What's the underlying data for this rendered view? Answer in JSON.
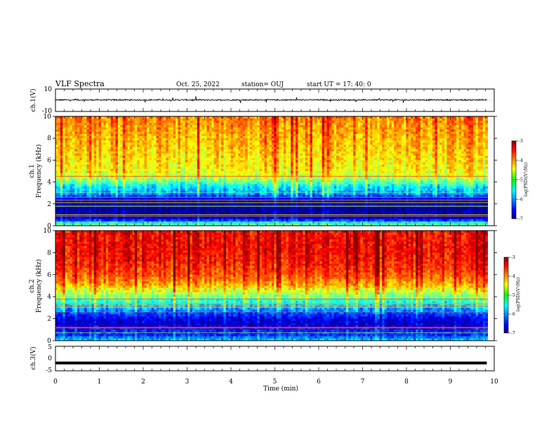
{
  "header": {
    "title": "VLF Spectra",
    "date": "Oct. 25, 2022",
    "station": "station= OUJ",
    "start": "start  UT =   17: 40: 0"
  },
  "chart_data": [
    {
      "type": "line",
      "panel": "ch1-waveform",
      "ylabel": "ch.1(V)",
      "ylim": [
        -10,
        10
      ],
      "y_ticks": [
        "10",
        "-10"
      ],
      "description_level": 0.3,
      "x_range_min": [
        0,
        10
      ],
      "series": [
        {
          "values_approx_mean": 0.3,
          "noise_amplitude": 1.2
        }
      ]
    },
    {
      "type": "heatmap",
      "panel": "ch1-spectrogram",
      "ylabel": "ch.1",
      "ylabel2": "Frequency (kHz)",
      "ylim": [
        0,
        10
      ],
      "y_ticks": [
        "0",
        "2",
        "4",
        "6",
        "8",
        "10"
      ],
      "x_range_min": [
        0,
        10
      ],
      "data_end_min": 9.85,
      "colorbar": {
        "label": "log(PSD)(V²/Hz)",
        "range": [
          -7,
          -3
        ],
        "ticks": [
          "-3",
          "-4",
          "-5",
          "-6",
          "-7"
        ]
      },
      "level_profile_by_freq_kHz": [
        [
          0.0,
          -5.0
        ],
        [
          0.3,
          -5.6
        ],
        [
          0.6,
          -6.6
        ],
        [
          1.0,
          -6.8
        ],
        [
          1.5,
          -6.9
        ],
        [
          2.0,
          -6.9
        ],
        [
          2.5,
          -6.6
        ],
        [
          3.0,
          -5.8
        ],
        [
          3.5,
          -5.6
        ],
        [
          4.0,
          -5.1
        ],
        [
          4.5,
          -4.7
        ],
        [
          5.0,
          -4.5
        ],
        [
          6.0,
          -4.4
        ],
        [
          7.0,
          -4.3
        ],
        [
          8.0,
          -4.2
        ],
        [
          9.0,
          -4.1
        ],
        [
          10.0,
          -4.0
        ]
      ]
    },
    {
      "type": "heatmap",
      "panel": "ch2-spectrogram",
      "ylabel": "ch.2",
      "ylabel2": "Frequency (kHz)",
      "ylim": [
        0,
        10
      ],
      "y_ticks": [
        "0",
        "2",
        "4",
        "6",
        "8",
        "10"
      ],
      "x_range_min": [
        0,
        10
      ],
      "data_end_min": 9.85,
      "colorbar": {
        "label": "log(PSD)(V²/Hz)",
        "range": [
          -7,
          -3
        ],
        "ticks": [
          "-3",
          "-4",
          "-5",
          "-6",
          "-7"
        ]
      },
      "level_profile_by_freq_kHz": [
        [
          0.0,
          -5.6
        ],
        [
          0.5,
          -6.3
        ],
        [
          1.0,
          -6.4
        ],
        [
          1.5,
          -6.7
        ],
        [
          2.0,
          -6.6
        ],
        [
          2.5,
          -6.2
        ],
        [
          3.0,
          -5.8
        ],
        [
          3.5,
          -5.4
        ],
        [
          4.0,
          -5.0
        ],
        [
          4.5,
          -4.6
        ],
        [
          5.0,
          -4.2
        ],
        [
          6.0,
          -3.8
        ],
        [
          7.0,
          -3.6
        ],
        [
          8.0,
          -3.5
        ],
        [
          9.0,
          -3.5
        ],
        [
          10.0,
          -3.5
        ]
      ]
    },
    {
      "type": "line",
      "panel": "ch3-waveform",
      "ylabel": "ch.3(V)",
      "ylim": [
        -5,
        5
      ],
      "y_ticks": [
        "5",
        "0",
        "-5"
      ],
      "x_range_min": [
        0,
        10
      ],
      "series": [
        {
          "values_approx_mean": -1.8
        }
      ]
    }
  ],
  "x_axis": {
    "label": "Time (min)",
    "ticks": [
      "0",
      "1",
      "2",
      "3",
      "4",
      "5",
      "6",
      "7",
      "8",
      "9",
      "10"
    ]
  },
  "colors": {
    "axis": "#000000",
    "background": "#ffffff"
  }
}
